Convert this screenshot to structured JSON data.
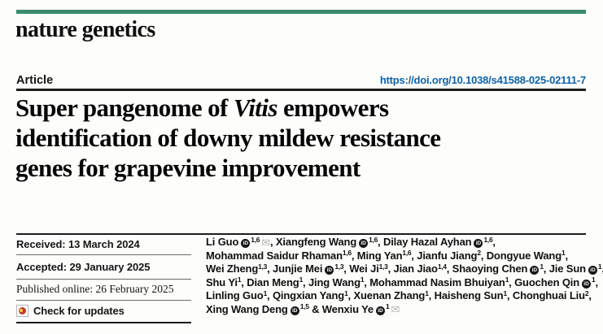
{
  "journal": {
    "name": "nature genetics",
    "accent_color": "#3a8b6e"
  },
  "article": {
    "type_label": "Article",
    "doi_text": "https://doi.org/10.1038/s41588-025-02111-7",
    "doi_color": "#0e62a6",
    "title_plain": "Super pangenome of Vitis empowers identification of downy mildew resistance genes for grapevine improvement",
    "title_lines": [
      {
        "pre": "Super pangenome of ",
        "italic": "Vitis",
        "post": " empowers"
      },
      {
        "pre": "identification of downy mildew resistance"
      },
      {
        "pre": "genes for grapevine improvement"
      }
    ]
  },
  "meta": {
    "received_label": "Received: 13 March 2024",
    "accepted_label": "Accepted: 29 January 2025",
    "published_label": "Published online: 26 February 2025",
    "check_updates_label": "Check for updates",
    "crossmark_icon": "crossmark-icon"
  },
  "authors": {
    "orcid_icon": "orcid-icon",
    "orcid_glyph": "iD",
    "email_icon": "envelope-icon",
    "email_glyph": "✉",
    "lines": [
      [
        {
          "name": "Li Guo",
          "orcid": true,
          "sup": "1,6",
          "email": true,
          "after": ", "
        },
        {
          "name": "Xiangfeng Wang",
          "orcid": true,
          "sup": "1,6",
          "after": ", "
        },
        {
          "name": "Dilay Hazal Ayhan",
          "orcid": true,
          "sup": "1,6",
          "after": ","
        }
      ],
      [
        {
          "name": "Mohammad Saidur Rhaman",
          "sup": "1,6",
          "after": ", "
        },
        {
          "name": "Ming Yan",
          "sup": "1,6",
          "after": ", "
        },
        {
          "name": "Jianfu Jiang",
          "sup": "2",
          "after": ", "
        },
        {
          "name": "Dongyue Wang",
          "sup": "1",
          "after": ","
        }
      ],
      [
        {
          "name": "Wei Zheng",
          "sup": "1,3",
          "after": ", "
        },
        {
          "name": "Junjie Mei",
          "orcid": true,
          "sup": "1,3",
          "after": ", "
        },
        {
          "name": "Wei Ji",
          "sup": "1,3",
          "after": ", "
        },
        {
          "name": "Jian Jiao",
          "sup": "1,4",
          "after": ", "
        },
        {
          "name": "Shaoying Chen",
          "orcid": true,
          "sup": "1",
          "after": ", "
        },
        {
          "name": "Jie Sun",
          "orcid": true,
          "sup": "1",
          "after": ","
        }
      ],
      [
        {
          "name": "Shu Yi",
          "sup": "1",
          "after": ", "
        },
        {
          "name": "Dian Meng",
          "sup": "1",
          "after": ", "
        },
        {
          "name": "Jing Wang",
          "sup": "1",
          "after": ", "
        },
        {
          "name": "Mohammad Nasim Bhuiyan",
          "sup": "1",
          "after": ", "
        },
        {
          "name": "Guochen Qin",
          "orcid": true,
          "sup": "1",
          "after": ","
        }
      ],
      [
        {
          "name": "Linling Guo",
          "sup": "1",
          "after": ", "
        },
        {
          "name": "Qingxian Yang",
          "sup": "1",
          "after": ", "
        },
        {
          "name": "Xuenan Zhang",
          "sup": "1",
          "after": ", "
        },
        {
          "name": "Haisheng Sun",
          "sup": "1",
          "after": ", "
        },
        {
          "name": "Chonghuai Liu",
          "sup": "2",
          "after": ","
        }
      ],
      [
        {
          "name": "Xing Wang Deng",
          "orcid": true,
          "sup": "1,5",
          "after": " & "
        },
        {
          "name": "Wenxiu Ye",
          "orcid": true,
          "sup": "1",
          "email": true,
          "after": ""
        }
      ]
    ]
  }
}
